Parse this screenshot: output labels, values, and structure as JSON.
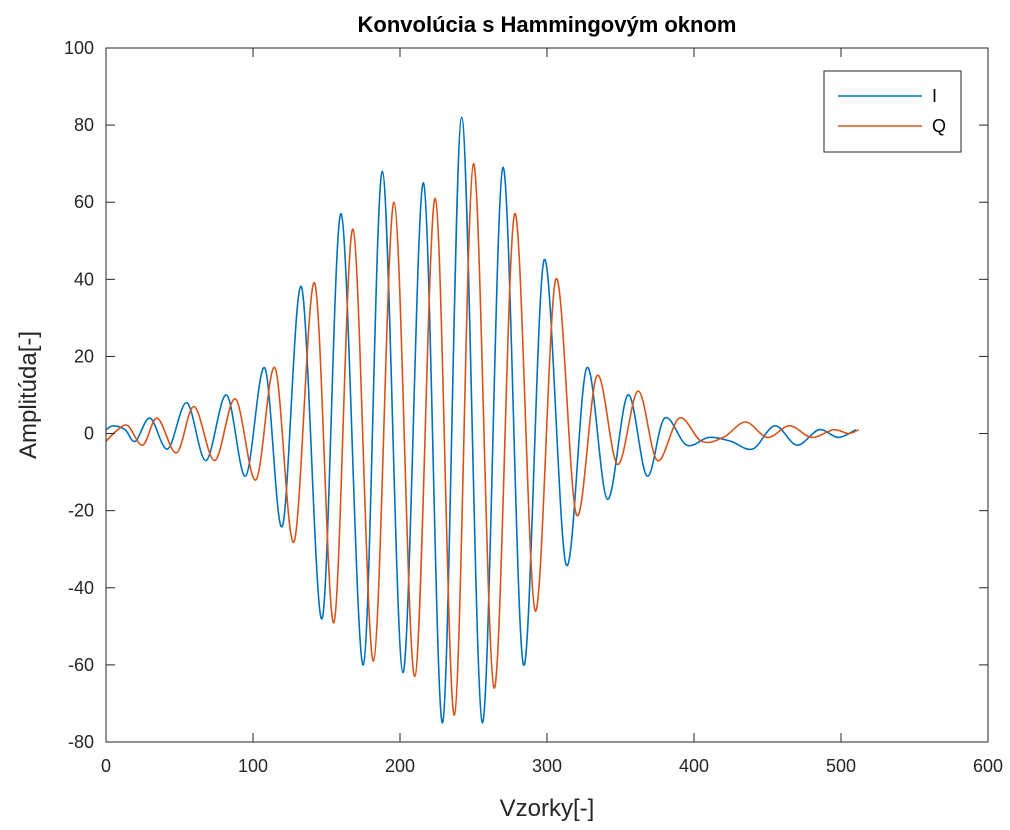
{
  "chart_data": {
    "type": "line",
    "title": "Konvolúcia s Hammingovým oknom",
    "xlabel": "Vzorky[-]",
    "ylabel": "Amplitúda[-]",
    "xlim": [
      0,
      600
    ],
    "ylim": [
      -80,
      100
    ],
    "x_ticks": [
      "0",
      "100",
      "200",
      "300",
      "400",
      "500",
      "600"
    ],
    "y_ticks": [
      "-80",
      "-60",
      "-40",
      "-20",
      "0",
      "20",
      "40",
      "60",
      "80",
      "100"
    ],
    "grid": false,
    "legend_position": "top-right",
    "series": [
      {
        "name": "I",
        "color": "#0072BD",
        "x": [
          0,
          5,
          13,
          20,
          30,
          42,
          55,
          68,
          82,
          95,
          108,
          120,
          133,
          147,
          160,
          175,
          188,
          202,
          216,
          229,
          242,
          256,
          270,
          284,
          298,
          313,
          327,
          341,
          355,
          368,
          380,
          395,
          410,
          425,
          440,
          455,
          470,
          485,
          498,
          510
        ],
        "y": [
          1,
          2,
          1,
          -2,
          4,
          -4,
          8,
          -7,
          10,
          -11,
          17,
          -24,
          38,
          -48,
          57,
          -60,
          68,
          -62,
          65,
          -75,
          82,
          -75,
          69,
          -60,
          45,
          -34,
          17,
          -17,
          10,
          -11,
          4,
          -3,
          -1,
          -2,
          -4,
          2,
          -3,
          1,
          -1,
          1
        ]
      },
      {
        "name": "Q",
        "color": "#D95319",
        "x": [
          0,
          8,
          15,
          25,
          35,
          48,
          60,
          74,
          88,
          102,
          115,
          128,
          142,
          155,
          168,
          182,
          196,
          210,
          224,
          237,
          250,
          264,
          278,
          292,
          306,
          320,
          334,
          348,
          362,
          375,
          390,
          405,
          420,
          435,
          450,
          465,
          480,
          495,
          505,
          512
        ],
        "y": [
          -2,
          1,
          2,
          -3,
          4,
          -5,
          7,
          -7,
          9,
          -12,
          17,
          -28,
          39,
          -49,
          53,
          -59,
          60,
          -63,
          61,
          -73,
          70,
          -66,
          57,
          -46,
          40,
          -21,
          15,
          -8,
          11,
          -7,
          4,
          -2,
          -1,
          3,
          -1,
          2,
          -1,
          1,
          0,
          1
        ]
      }
    ]
  }
}
